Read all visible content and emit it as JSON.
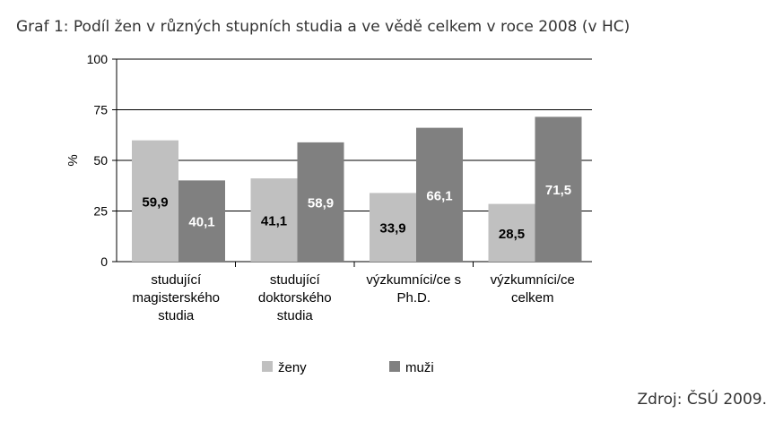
{
  "title": "Graf 1: Podíl žen v různých stupních studia a ve vědě celkem v roce 2008 (v HC)",
  "source": "Zdroj: ČSÚ 2009.",
  "chart_data": {
    "type": "bar",
    "ylabel": "%",
    "ylim": [
      0,
      100
    ],
    "yticks": [
      0,
      25,
      50,
      75,
      100
    ],
    "grid": true,
    "legend_position": "bottom",
    "categories": [
      [
        "studující",
        "magisterského",
        "studia"
      ],
      [
        "studující",
        "doktorského",
        "studia"
      ],
      [
        "výzkumníci/ce s",
        "Ph.D."
      ],
      [
        "výzkumníci/ce",
        "celkem"
      ]
    ],
    "series": [
      {
        "name": "ženy",
        "color": "#c0c0c0",
        "values": [
          59.9,
          41.1,
          33.9,
          28.5
        ],
        "labels": [
          "59,9",
          "41,1",
          "33,9",
          "28,5"
        ]
      },
      {
        "name": "muži",
        "color": "#808080",
        "values": [
          40.1,
          58.9,
          66.1,
          71.5
        ],
        "labels": [
          "40,1",
          "58,9",
          "66,1",
          "71,5"
        ]
      }
    ]
  }
}
